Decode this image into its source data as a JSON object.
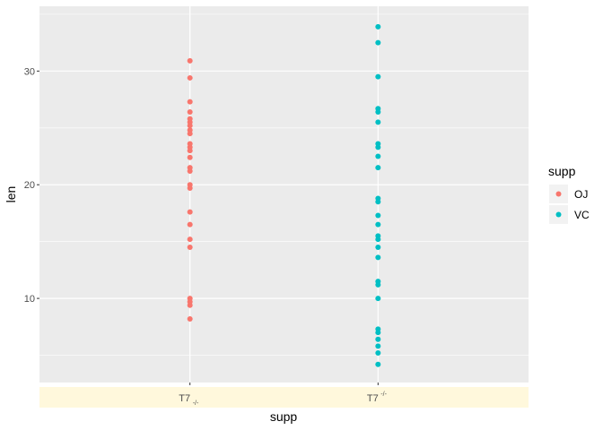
{
  "chart_data": {
    "type": "scatter",
    "xlabel": "supp",
    "ylabel": "len",
    "categories": [
      "T7",
      "T7"
    ],
    "category_sub": [
      "-/-",
      "-/-"
    ],
    "category_sub_position": [
      "subscript",
      "superscript"
    ],
    "ylim": [
      2.6,
      35.7
    ],
    "yticks": [
      10,
      20,
      30
    ],
    "grid": true,
    "legend": {
      "title": "supp",
      "position": "right"
    },
    "series": [
      {
        "name": "OJ",
        "category_index": 0,
        "color": "#F8766D",
        "values": [
          8.2,
          9.4,
          9.7,
          10.0,
          14.5,
          15.2,
          16.5,
          17.6,
          19.7,
          20.0,
          21.2,
          21.5,
          22.4,
          23.0,
          23.3,
          23.6,
          24.5,
          24.8,
          25.2,
          25.5,
          25.8,
          26.4,
          27.3,
          29.4,
          30.9
        ]
      },
      {
        "name": "VC",
        "category_index": 1,
        "color": "#00BFC4",
        "values": [
          4.2,
          5.2,
          5.8,
          6.4,
          7.0,
          7.3,
          10.0,
          11.2,
          11.5,
          13.6,
          14.5,
          15.2,
          15.5,
          16.5,
          17.3,
          18.5,
          18.8,
          21.5,
          22.5,
          23.3,
          23.6,
          25.5,
          26.4,
          26.7,
          29.5,
          32.5,
          33.9
        ]
      }
    ],
    "colors": {
      "panel": "#EBEBEB",
      "grid": "#FFFFFF",
      "x_strip": "#FFF8DC"
    }
  }
}
